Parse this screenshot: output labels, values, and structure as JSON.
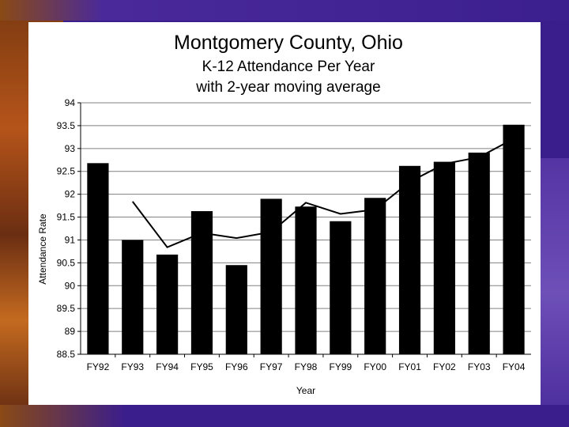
{
  "chart_data": {
    "type": "bar",
    "title": "Montgomery County, Ohio",
    "subtitle_lines": [
      "K-12 Attendance Per Year",
      "with 2-year moving average"
    ],
    "xlabel": "Year",
    "ylabel": "Attendance Rate",
    "ylim": [
      88.5,
      94
    ],
    "yticks": [
      88.5,
      89,
      89.5,
      90,
      90.5,
      91,
      91.5,
      92,
      92.5,
      93,
      93.5,
      94
    ],
    "grid": "horizontal",
    "categories": [
      "FY92",
      "FY93",
      "FY94",
      "FY95",
      "FY96",
      "FY97",
      "FY98",
      "FY99",
      "FY00",
      "FY01",
      "FY02",
      "FY03",
      "FY04"
    ],
    "series": [
      {
        "type": "bar",
        "color": "#000000",
        "values": [
          92.68,
          91.0,
          90.68,
          91.63,
          90.45,
          91.9,
          91.73,
          91.41,
          91.92,
          92.62,
          92.71,
          92.91,
          93.52
        ]
      },
      {
        "type": "line",
        "color": "#000000",
        "values": [
          null,
          91.84,
          90.84,
          91.155,
          91.04,
          91.175,
          91.815,
          91.57,
          91.665,
          92.27,
          92.665,
          92.81,
          93.215
        ]
      }
    ]
  }
}
